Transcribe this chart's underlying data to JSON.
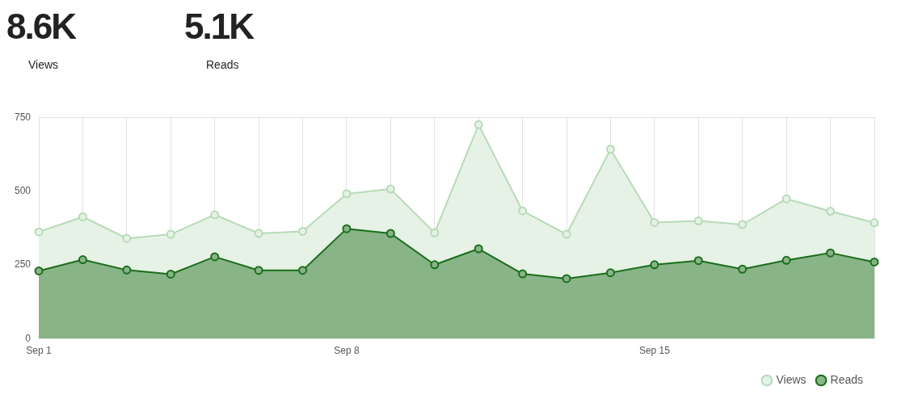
{
  "chart_data": {
    "type": "area",
    "annotations": [
      "8.6K",
      "Views",
      "5.1K",
      "Reads"
    ],
    "categories": [
      "Sep 1",
      null,
      null,
      null,
      null,
      null,
      null,
      "Sep 8",
      null,
      null,
      null,
      null,
      null,
      null,
      "Sep 15",
      null,
      null,
      null,
      null,
      null
    ],
    "series": [
      {
        "name": "Views",
        "color": "#b7dab7",
        "values": [
          362,
          413,
          340,
          354,
          420,
          357,
          364,
          491,
          507,
          359,
          725,
          433,
          354,
          642,
          394,
          399,
          387,
          474,
          432,
          393
        ]
      },
      {
        "name": "Reads",
        "color": "#1a6e1a",
        "values": [
          230,
          268,
          233,
          219,
          278,
          232,
          232,
          373,
          357,
          251,
          305,
          220,
          204,
          224,
          251,
          265,
          236,
          266,
          291,
          260
        ]
      }
    ],
    "ylim": [
      0,
      750
    ],
    "yticks": [
      0,
      250,
      500,
      750
    ],
    "grid": "x",
    "legend": "bottom right",
    "marker": "circle",
    "line_style": "solid"
  }
}
